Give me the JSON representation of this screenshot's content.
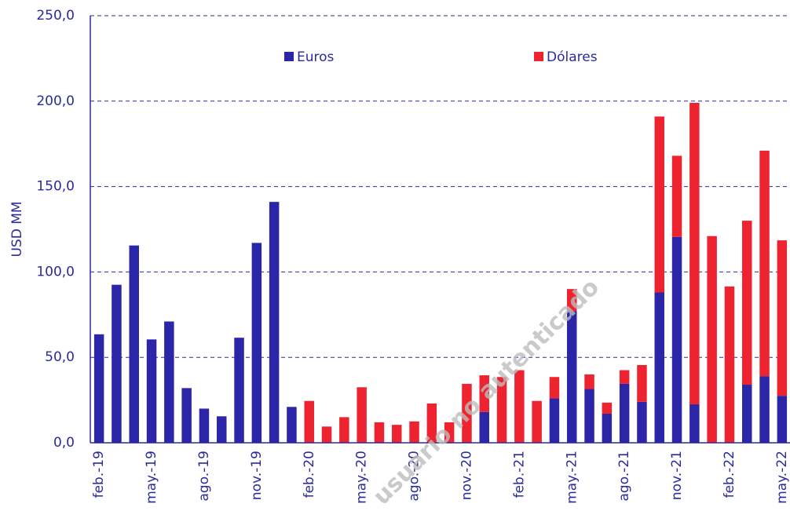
{
  "chart_data": {
    "type": "bar",
    "stacked": true,
    "y_label": "USD MM",
    "watermark": "usuario no autenticado",
    "categories": [
      "feb.-19",
      null,
      null,
      "may.-19",
      null,
      null,
      "ago.-19",
      null,
      null,
      "nov.-19",
      null,
      null,
      "feb.-20",
      null,
      null,
      "may.-20",
      null,
      null,
      "ago.-20",
      null,
      null,
      "nov.-20",
      null,
      null,
      "feb.-21",
      null,
      null,
      "may.-21",
      null,
      null,
      "ago.-21",
      null,
      null,
      "nov.-21",
      null,
      null,
      "feb.-22",
      null,
      null,
      "may.-22"
    ],
    "series": [
      {
        "name": "Euros",
        "color": "#2b25a8",
        "values": [
          63.5,
          92.5,
          115.5,
          60.5,
          71,
          32,
          20,
          15.5,
          61.5,
          117,
          141,
          21,
          0,
          0,
          0,
          0,
          0,
          0,
          0,
          0,
          0,
          0,
          18,
          0,
          0,
          0,
          26,
          77,
          31.5,
          17,
          34.5,
          24,
          88,
          120.5,
          22.5,
          0,
          0,
          34,
          39,
          27.5
        ]
      },
      {
        "name": "Dólares",
        "color": "#ee2330",
        "values": [
          0,
          0,
          0,
          0,
          0,
          0,
          0,
          0,
          0,
          0,
          0,
          0,
          24.5,
          9.5,
          15,
          32.5,
          12,
          10.5,
          12.5,
          23,
          12,
          34.5,
          21.5,
          38.5,
          42.5,
          24.5,
          12.5,
          13,
          8.5,
          6.5,
          8,
          21.5,
          103,
          47.5,
          176.5,
          121,
          91.5,
          96,
          132,
          91
        ]
      }
    ],
    "ylim": [
      0,
      250
    ],
    "yticks": [
      {
        "value": 0,
        "label": "0,0"
      },
      {
        "value": 50,
        "label": "50,0"
      },
      {
        "value": 100,
        "label": "100,0"
      },
      {
        "value": 150,
        "label": "150,0"
      },
      {
        "value": 200,
        "label": "200,0"
      },
      {
        "value": 250,
        "label": "250,0"
      }
    ],
    "grid": true
  }
}
